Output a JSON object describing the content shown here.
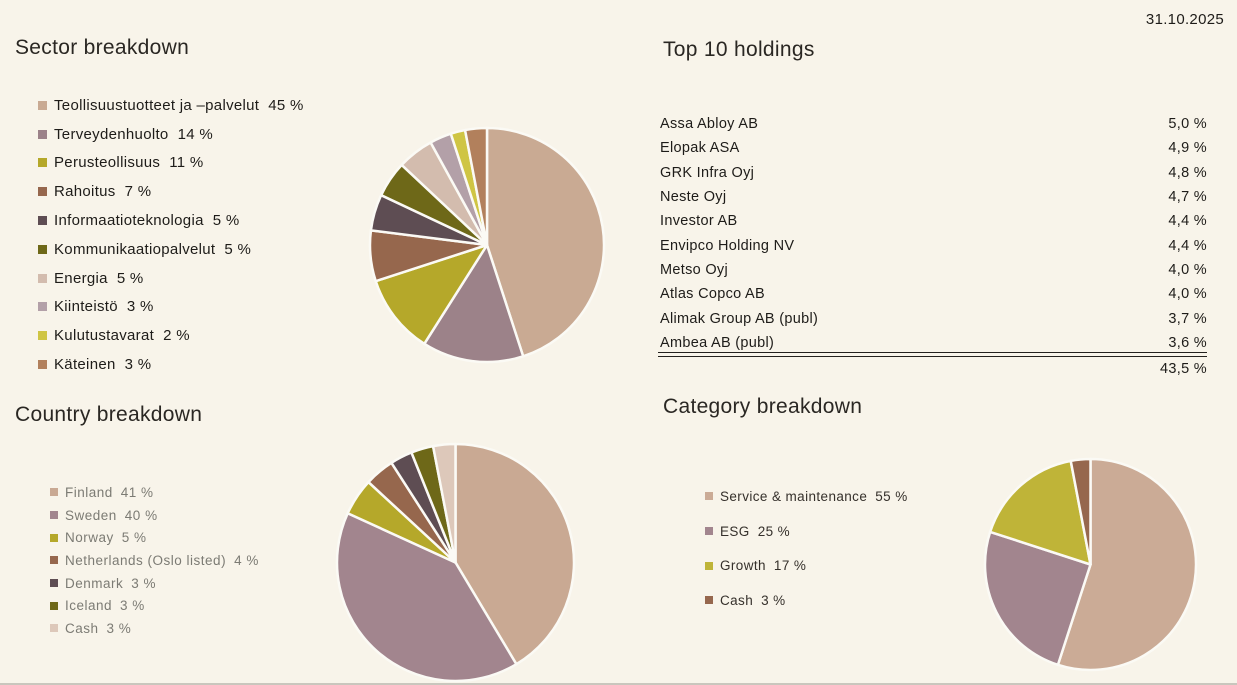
{
  "date": "31.10.2025",
  "page_bg": "#f8f4ea",
  "slice_separator_color": "#fbfaf5",
  "chart_data": [
    {
      "id": "sector",
      "type": "pie",
      "title": "Sector breakdown",
      "legend_position": "left",
      "items": [
        {
          "label": "Teollisuustuotteet ja –palvelut",
          "pct": 45,
          "display": "45 %",
          "color": "#c9aa93"
        },
        {
          "label": "Terveydenhuolto",
          "pct": 14,
          "display": "14 %",
          "color": "#9c8289"
        },
        {
          "label": "Perusteollisuus",
          "pct": 11,
          "display": "11 %",
          "color": "#b5a82a"
        },
        {
          "label": "Rahoitus",
          "pct": 7,
          "display": "7 %",
          "color": "#96674d"
        },
        {
          "label": "Informaatioteknologia",
          "pct": 5,
          "display": "5 %",
          "color": "#5e4d53"
        },
        {
          "label": "Kommunikaatiopalvelut",
          "pct": 5,
          "display": "5 %",
          "color": "#6e6818"
        },
        {
          "label": "Energia",
          "pct": 5,
          "display": "5 %",
          "color": "#d3bcae"
        },
        {
          "label": "Kiinteistö",
          "pct": 3,
          "display": "3 %",
          "color": "#b3a0a8"
        },
        {
          "label": "Kulutustavarat",
          "pct": 2,
          "display": "2 %",
          "color": "#cfc544"
        },
        {
          "label": "Käteinen",
          "pct": 3,
          "display": "3 %",
          "color": "#b2805c"
        }
      ]
    },
    {
      "id": "holdings",
      "type": "table",
      "title": "Top 10 holdings",
      "rows": [
        {
          "name": "Assa Abloy AB",
          "weight": "5,0 %"
        },
        {
          "name": "Elopak ASA",
          "weight": "4,9 %"
        },
        {
          "name": "GRK Infra Oyj",
          "weight": "4,8 %"
        },
        {
          "name": "Neste Oyj",
          "weight": "4,7 %"
        },
        {
          "name": "Investor AB",
          "weight": "4,4 %"
        },
        {
          "name": "Envipco Holding NV",
          "weight": "4,4 %"
        },
        {
          "name": "Metso Oyj",
          "weight": "4,0 %"
        },
        {
          "name": "Atlas Copco AB",
          "weight": "4,0 %"
        },
        {
          "name": "Alimak Group AB (publ)",
          "weight": "3,7 %"
        },
        {
          "name": "Ambea AB (publ)",
          "weight": "3,6 %"
        }
      ],
      "total": "43,5 %"
    },
    {
      "id": "country",
      "type": "pie",
      "title": "Country breakdown",
      "legend_position": "left",
      "items": [
        {
          "label": "Finland",
          "pct": 41,
          "display": "41 %",
          "color": "#c9a993"
        },
        {
          "label": "Sweden",
          "pct": 40,
          "display": "40 %",
          "color": "#a2858e"
        },
        {
          "label": "Norway",
          "pct": 5,
          "display": "5 %",
          "color": "#b5a82a"
        },
        {
          "label": "Netherlands (Oslo listed)",
          "pct": 4,
          "display": "4 %",
          "color": "#96674d"
        },
        {
          "label": "Denmark",
          "pct": 3,
          "display": "3 %",
          "color": "#5e4d53"
        },
        {
          "label": "Iceland",
          "pct": 3,
          "display": "3 %",
          "color": "#6e6818"
        },
        {
          "label": "Cash",
          "pct": 3,
          "display": "3 %",
          "color": "#ddc8ba"
        }
      ]
    },
    {
      "id": "category",
      "type": "pie",
      "title": "Category breakdown",
      "legend_position": "left",
      "items": [
        {
          "label": "Service & maintenance",
          "pct": 55,
          "display": "55 %",
          "color": "#cbab96"
        },
        {
          "label": "ESG",
          "pct": 25,
          "display": "25 %",
          "color": "#a2858e"
        },
        {
          "label": "Growth",
          "pct": 17,
          "display": "17 %",
          "color": "#bfb438"
        },
        {
          "label": "Cash",
          "pct": 3,
          "display": "3 %",
          "color": "#96674d"
        }
      ]
    }
  ]
}
